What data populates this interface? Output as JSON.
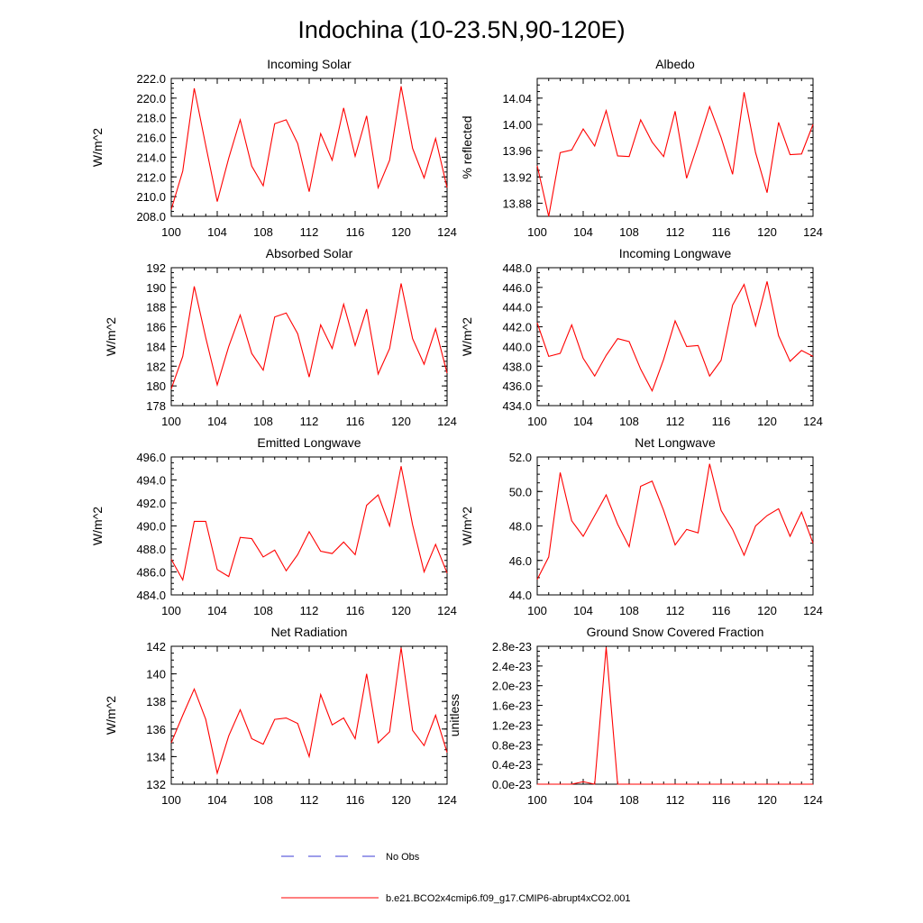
{
  "figure": {
    "title": "Indochina (10-23.5N,90-120E)",
    "x_ticks": [
      100,
      104,
      108,
      112,
      116,
      120,
      124
    ],
    "colors": {
      "model_line": "#ff0000",
      "obs_line": "#3b3bd6",
      "axes": "#000000"
    }
  },
  "legend": [
    {
      "label": "No Obs",
      "style": "dashed",
      "color": "#3b3bd6"
    },
    {
      "label": "b.e21.BCO2x4cmip6.f09_g17.CMIP6-abrupt4xCO2.001",
      "style": "solid",
      "color": "#ff0000"
    }
  ],
  "chart_data": [
    {
      "type": "line",
      "title": "Incoming Solar",
      "ylabel": "W/m^2",
      "xlim": [
        100,
        124
      ],
      "ylim": [
        208,
        222
      ],
      "x_ticks": [
        100,
        104,
        108,
        112,
        116,
        120,
        124
      ],
      "y_ticks": [
        "208.0",
        "210.0",
        "212.0",
        "214.0",
        "216.0",
        "218.0",
        "220.0",
        "222.0"
      ],
      "y_tick_values": [
        208,
        210,
        212,
        214,
        216,
        218,
        220,
        222
      ],
      "series": [
        {
          "name": "b.e21.BCO2x4cmip6.f09_g17.CMIP6-abrupt4xCO2.001",
          "x": [
            100,
            101,
            102,
            103,
            104,
            105,
            106,
            107,
            108,
            109,
            110,
            111,
            112,
            113,
            114,
            115,
            116,
            117,
            118,
            119,
            120,
            121,
            122,
            123,
            124
          ],
          "values": [
            208.7,
            212.6,
            221.0,
            215.2,
            209.5,
            213.9,
            217.8,
            213.1,
            211.1,
            217.4,
            217.8,
            215.4,
            210.5,
            216.4,
            213.7,
            219.0,
            214.1,
            218.2,
            210.9,
            213.7,
            221.2,
            214.9,
            211.9,
            215.9,
            210.9
          ]
        }
      ]
    },
    {
      "type": "line",
      "title": "Albedo",
      "ylabel": "% reflected",
      "xlim": [
        100,
        124
      ],
      "ylim": [
        13.86,
        14.07
      ],
      "x_ticks": [
        100,
        104,
        108,
        112,
        116,
        120,
        124
      ],
      "y_ticks": [
        "13.88",
        "13.92",
        "13.96",
        "14.00",
        "14.04"
      ],
      "y_tick_values": [
        13.88,
        13.92,
        13.96,
        14.0,
        14.04
      ],
      "series": [
        {
          "name": "b.e21.BCO2x4cmip6.f09_g17.CMIP6-abrupt4xCO2.001",
          "x": [
            100,
            101,
            102,
            103,
            104,
            105,
            106,
            107,
            108,
            109,
            110,
            111,
            112,
            113,
            114,
            115,
            116,
            117,
            118,
            119,
            120,
            121,
            122,
            123,
            124
          ],
          "values": [
            13.937,
            13.86,
            13.957,
            13.961,
            13.993,
            13.967,
            14.021,
            13.952,
            13.951,
            14.007,
            13.973,
            13.951,
            14.02,
            13.918,
            13.971,
            14.027,
            13.98,
            13.924,
            14.049,
            13.957,
            13.896,
            14.003,
            13.954,
            13.955,
            14.0
          ]
        }
      ]
    },
    {
      "type": "line",
      "title": "Absorbed Solar",
      "ylabel": "W/m^2",
      "xlim": [
        100,
        124
      ],
      "ylim": [
        178,
        192
      ],
      "x_ticks": [
        100,
        104,
        108,
        112,
        116,
        120,
        124
      ],
      "y_ticks": [
        "178",
        "180",
        "182",
        "184",
        "186",
        "188",
        "190",
        "192"
      ],
      "y_tick_values": [
        178,
        180,
        182,
        184,
        186,
        188,
        190,
        192
      ],
      "series": [
        {
          "name": "b.e21.BCO2x4cmip6.f09_g17.CMIP6-abrupt4xCO2.001",
          "x": [
            100,
            101,
            102,
            103,
            104,
            105,
            106,
            107,
            108,
            109,
            110,
            111,
            112,
            113,
            114,
            115,
            116,
            117,
            118,
            119,
            120,
            121,
            122,
            123,
            124
          ],
          "values": [
            179.7,
            183.0,
            190.1,
            184.9,
            180.1,
            184.0,
            187.2,
            183.3,
            181.6,
            187.0,
            187.4,
            185.3,
            180.9,
            186.2,
            183.8,
            188.3,
            184.1,
            187.8,
            181.2,
            183.8,
            190.4,
            184.8,
            182.2,
            185.8,
            181.3
          ]
        }
      ]
    },
    {
      "type": "line",
      "title": "Incoming Longwave",
      "ylabel": "W/m^2",
      "xlim": [
        100,
        124
      ],
      "ylim": [
        434,
        448
      ],
      "x_ticks": [
        100,
        104,
        108,
        112,
        116,
        120,
        124
      ],
      "y_ticks": [
        "434.0",
        "436.0",
        "438.0",
        "440.0",
        "442.0",
        "444.0",
        "446.0",
        "448.0"
      ],
      "y_tick_values": [
        434,
        436,
        438,
        440,
        442,
        444,
        446,
        448
      ],
      "series": [
        {
          "name": "b.e21.BCO2x4cmip6.f09_g17.CMIP6-abrupt4xCO2.001",
          "x": [
            100,
            101,
            102,
            103,
            104,
            105,
            106,
            107,
            108,
            109,
            110,
            111,
            112,
            113,
            114,
            115,
            116,
            117,
            118,
            119,
            120,
            121,
            122,
            123,
            124
          ],
          "values": [
            442.4,
            439.0,
            439.3,
            442.2,
            438.8,
            437.0,
            439.1,
            440.8,
            440.5,
            437.7,
            435.5,
            438.7,
            442.6,
            440.0,
            440.1,
            437.0,
            438.6,
            444.2,
            446.3,
            442.1,
            446.6,
            441.1,
            438.5,
            439.6,
            439.0
          ]
        }
      ]
    },
    {
      "type": "line",
      "title": "Emitted Longwave",
      "ylabel": "W/m^2",
      "xlim": [
        100,
        124
      ],
      "ylim": [
        484,
        496
      ],
      "x_ticks": [
        100,
        104,
        108,
        112,
        116,
        120,
        124
      ],
      "y_ticks": [
        "484.0",
        "486.0",
        "488.0",
        "490.0",
        "492.0",
        "494.0",
        "496.0"
      ],
      "y_tick_values": [
        484,
        486,
        488,
        490,
        492,
        494,
        496
      ],
      "series": [
        {
          "name": "b.e21.BCO2x4cmip6.f09_g17.CMIP6-abrupt4xCO2.001",
          "x": [
            100,
            101,
            102,
            103,
            104,
            105,
            106,
            107,
            108,
            109,
            110,
            111,
            112,
            113,
            114,
            115,
            116,
            117,
            118,
            119,
            120,
            121,
            122,
            123,
            124
          ],
          "values": [
            487.1,
            485.3,
            490.4,
            490.4,
            486.2,
            485.6,
            489.0,
            488.9,
            487.3,
            487.9,
            486.1,
            487.5,
            489.5,
            487.8,
            487.6,
            488.6,
            487.5,
            491.8,
            492.7,
            490.0,
            495.2,
            490.1,
            486.0,
            488.4,
            485.9
          ]
        }
      ]
    },
    {
      "type": "line",
      "title": "Net Longwave",
      "ylabel": "W/m^2",
      "xlim": [
        100,
        124
      ],
      "ylim": [
        44,
        52
      ],
      "x_ticks": [
        100,
        104,
        108,
        112,
        116,
        120,
        124
      ],
      "y_ticks": [
        "44.0",
        "46.0",
        "48.0",
        "50.0",
        "52.0"
      ],
      "y_tick_values": [
        44,
        46,
        48,
        50,
        52
      ],
      "series": [
        {
          "name": "b.e21.BCO2x4cmip6.f09_g17.CMIP6-abrupt4xCO2.001",
          "x": [
            100,
            101,
            102,
            103,
            104,
            105,
            106,
            107,
            108,
            109,
            110,
            111,
            112,
            113,
            114,
            115,
            116,
            117,
            118,
            119,
            120,
            121,
            122,
            123,
            124
          ],
          "values": [
            44.9,
            46.2,
            51.1,
            48.3,
            47.4,
            48.6,
            49.8,
            48.1,
            46.8,
            50.3,
            50.6,
            48.9,
            46.9,
            47.8,
            47.6,
            51.6,
            48.9,
            47.8,
            46.3,
            48.0,
            48.6,
            49.0,
            47.4,
            48.8,
            47.0
          ]
        }
      ]
    },
    {
      "type": "line",
      "title": "Net Radiation",
      "ylabel": "W/m^2",
      "xlim": [
        100,
        124
      ],
      "ylim": [
        132,
        142
      ],
      "x_ticks": [
        100,
        104,
        108,
        112,
        116,
        120,
        124
      ],
      "y_ticks": [
        "132",
        "134",
        "136",
        "138",
        "140",
        "142"
      ],
      "y_tick_values": [
        132,
        134,
        136,
        138,
        140,
        142
      ],
      "series": [
        {
          "name": "b.e21.BCO2x4cmip6.f09_g17.CMIP6-abrupt4xCO2.001",
          "x": [
            100,
            101,
            102,
            103,
            104,
            105,
            106,
            107,
            108,
            109,
            110,
            111,
            112,
            113,
            114,
            115,
            116,
            117,
            118,
            119,
            120,
            121,
            122,
            123,
            124
          ],
          "values": [
            135.0,
            137.0,
            138.9,
            136.7,
            132.8,
            135.5,
            137.4,
            135.3,
            134.9,
            136.7,
            136.8,
            136.4,
            134.0,
            138.5,
            136.3,
            136.8,
            135.3,
            140.0,
            135.0,
            135.8,
            141.9,
            135.9,
            134.8,
            137.0,
            134.3
          ]
        }
      ]
    },
    {
      "type": "line",
      "title": "Ground Snow Covered Fraction",
      "ylabel": "unitless",
      "xlim": [
        100,
        124
      ],
      "ylim": [
        0,
        2.8e-23
      ],
      "x_ticks": [
        100,
        104,
        108,
        112,
        116,
        120,
        124
      ],
      "y_ticks": [
        "0.0e-23",
        "0.4e-23",
        "0.8e-23",
        "1.2e-23",
        "1.6e-23",
        "2.0e-23",
        "2.4e-23",
        "2.8e-23"
      ],
      "y_tick_values": [
        0,
        4e-24,
        8e-24,
        1.2e-23,
        1.6e-23,
        2e-23,
        2.4e-23,
        2.8e-23
      ],
      "series": [
        {
          "name": "b.e21.BCO2x4cmip6.f09_g17.CMIP6-abrupt4xCO2.001",
          "x": [
            100,
            101,
            102,
            103,
            104,
            105,
            106,
            107,
            108,
            109,
            110,
            111,
            112,
            113,
            114,
            115,
            116,
            117,
            118,
            119,
            120,
            121,
            122,
            123,
            124
          ],
          "values": [
            0,
            0,
            0,
            0,
            5e-25,
            0,
            2.78e-23,
            0,
            0,
            0,
            0,
            0,
            0,
            0,
            0,
            0,
            0,
            0,
            0,
            0,
            0,
            0,
            0,
            0,
            0
          ]
        }
      ]
    }
  ]
}
